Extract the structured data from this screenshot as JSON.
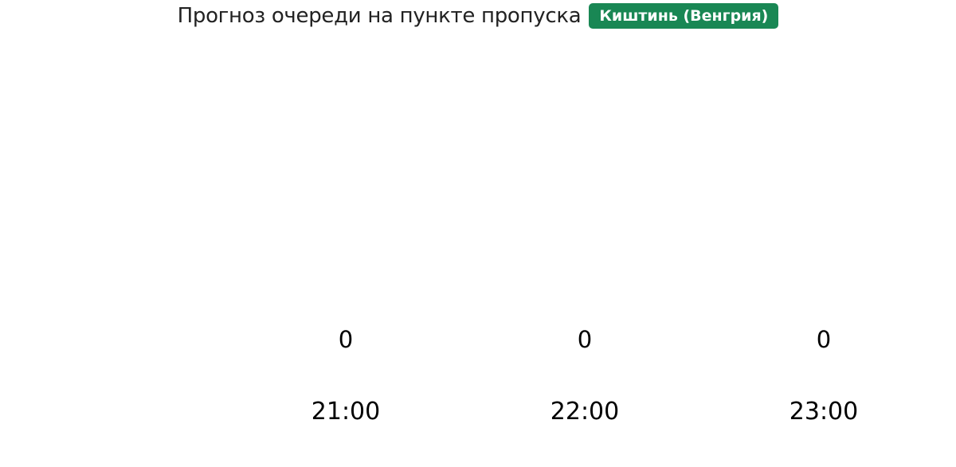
{
  "chart_data": {
    "type": "bar",
    "title": "Прогноз очереди на пункте пропуска",
    "badge": "Киштинь (Венгрия)",
    "badge_color": "#198754",
    "categories": [
      "21:00",
      "22:00",
      "23:00"
    ],
    "values": [
      0,
      0,
      0
    ],
    "data_labels": [
      "0",
      "0",
      "0"
    ],
    "grid": false
  }
}
